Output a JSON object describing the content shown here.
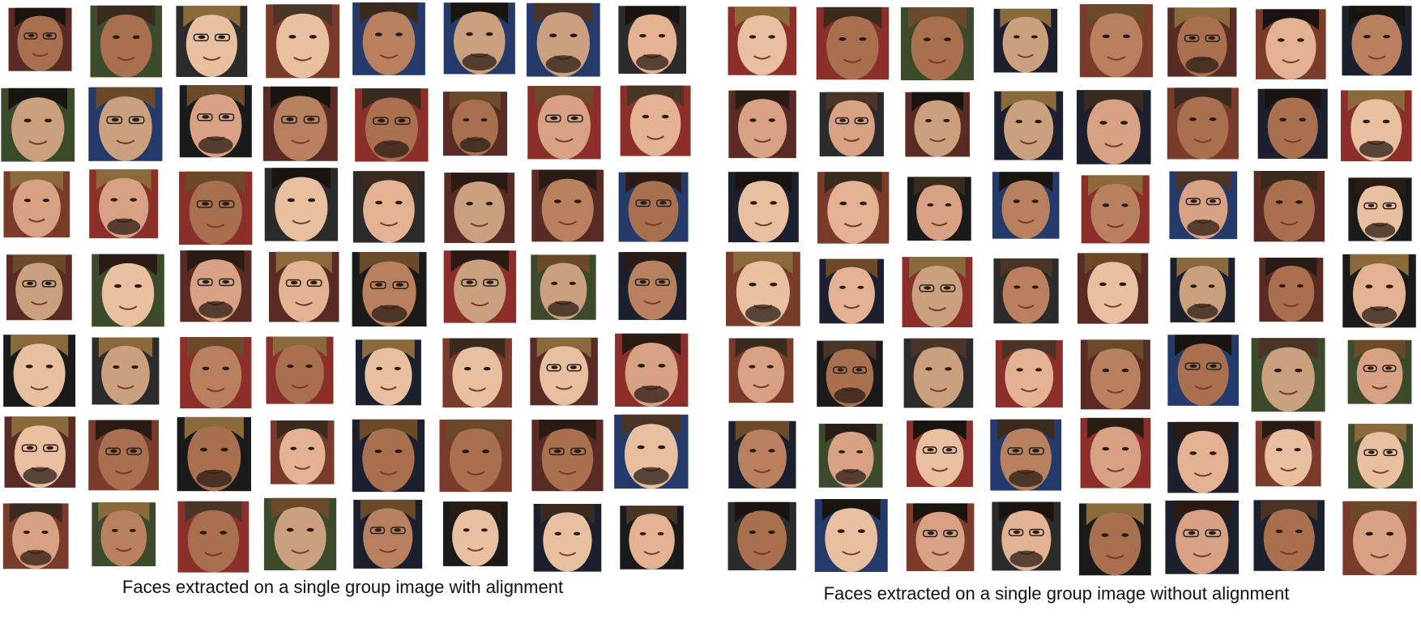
{
  "panels": [
    {
      "caption": "Faces extracted on a single group image with alignment"
    },
    {
      "caption": "Faces extracted on a single group image without alignment"
    }
  ]
}
